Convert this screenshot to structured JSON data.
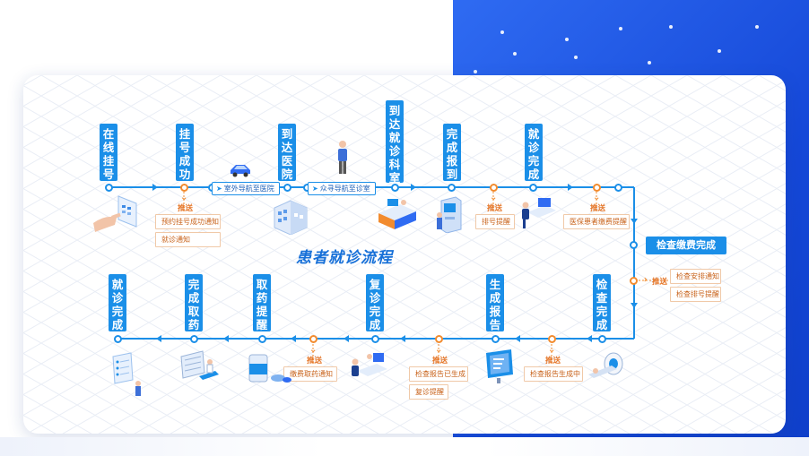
{
  "title": "患者就诊流程",
  "colors": {
    "accent": "#1b8fe8",
    "push": "#e5772a",
    "background_blue": "#1548d8"
  },
  "top_row": {
    "stages": [
      {
        "id": "online-register",
        "label": [
          "在",
          "线",
          "挂",
          "号"
        ]
      },
      {
        "id": "register-success",
        "label": [
          "挂",
          "号",
          "成",
          "功"
        ]
      },
      {
        "id": "arrive-hospital",
        "label": [
          "到",
          "达",
          "医",
          "院"
        ]
      },
      {
        "id": "arrive-clinic",
        "label": [
          "到",
          "达",
          "就",
          "诊",
          "科",
          "室"
        ]
      },
      {
        "id": "check-in",
        "label": [
          "完",
          "成",
          "报",
          "到"
        ]
      },
      {
        "id": "visit-done",
        "label": [
          "就",
          "诊",
          "完",
          "成"
        ]
      }
    ],
    "navigation": [
      {
        "id": "outdoor-nav",
        "text": "室外导航至医院"
      },
      {
        "id": "indoor-nav",
        "text": "众寻导航至诊室"
      }
    ],
    "pushes": [
      {
        "id": "push-register",
        "label": "推送",
        "notices": [
          "预约挂号成功通知",
          "就诊通知"
        ]
      },
      {
        "id": "push-checkin",
        "label": "推送",
        "notices": [
          "排号提醒"
        ]
      },
      {
        "id": "push-visit",
        "label": "推送",
        "notices": [
          "医保患者缴费提醒"
        ]
      }
    ]
  },
  "exam_fee": {
    "badge": "检查缴费完成",
    "push_label": "推送",
    "notices": [
      "检查安排通知",
      "检查排号提醒"
    ]
  },
  "bottom_row": {
    "stages": [
      {
        "id": "final-done",
        "label": [
          "就",
          "诊",
          "完",
          "成"
        ]
      },
      {
        "id": "pickup-done",
        "label": [
          "完",
          "成",
          "取",
          "药"
        ]
      },
      {
        "id": "pickup-remind",
        "label": [
          "取",
          "药",
          "提",
          "醒"
        ]
      },
      {
        "id": "revisit-done",
        "label": [
          "复",
          "诊",
          "完",
          "成"
        ]
      },
      {
        "id": "report-ready",
        "label": [
          "生",
          "成",
          "报",
          "告"
        ]
      },
      {
        "id": "exam-done",
        "label": [
          "检",
          "查",
          "完",
          "成"
        ]
      }
    ],
    "pushes": [
      {
        "id": "push-payment",
        "label": "推送",
        "notices": [
          "缴费取药通知"
        ]
      },
      {
        "id": "push-report",
        "label": "推送",
        "notices": [
          "检查报告已生成",
          "复诊提醒"
        ]
      },
      {
        "id": "push-generating",
        "label": "推送",
        "notices": [
          "检查报告生成中"
        ]
      }
    ]
  }
}
